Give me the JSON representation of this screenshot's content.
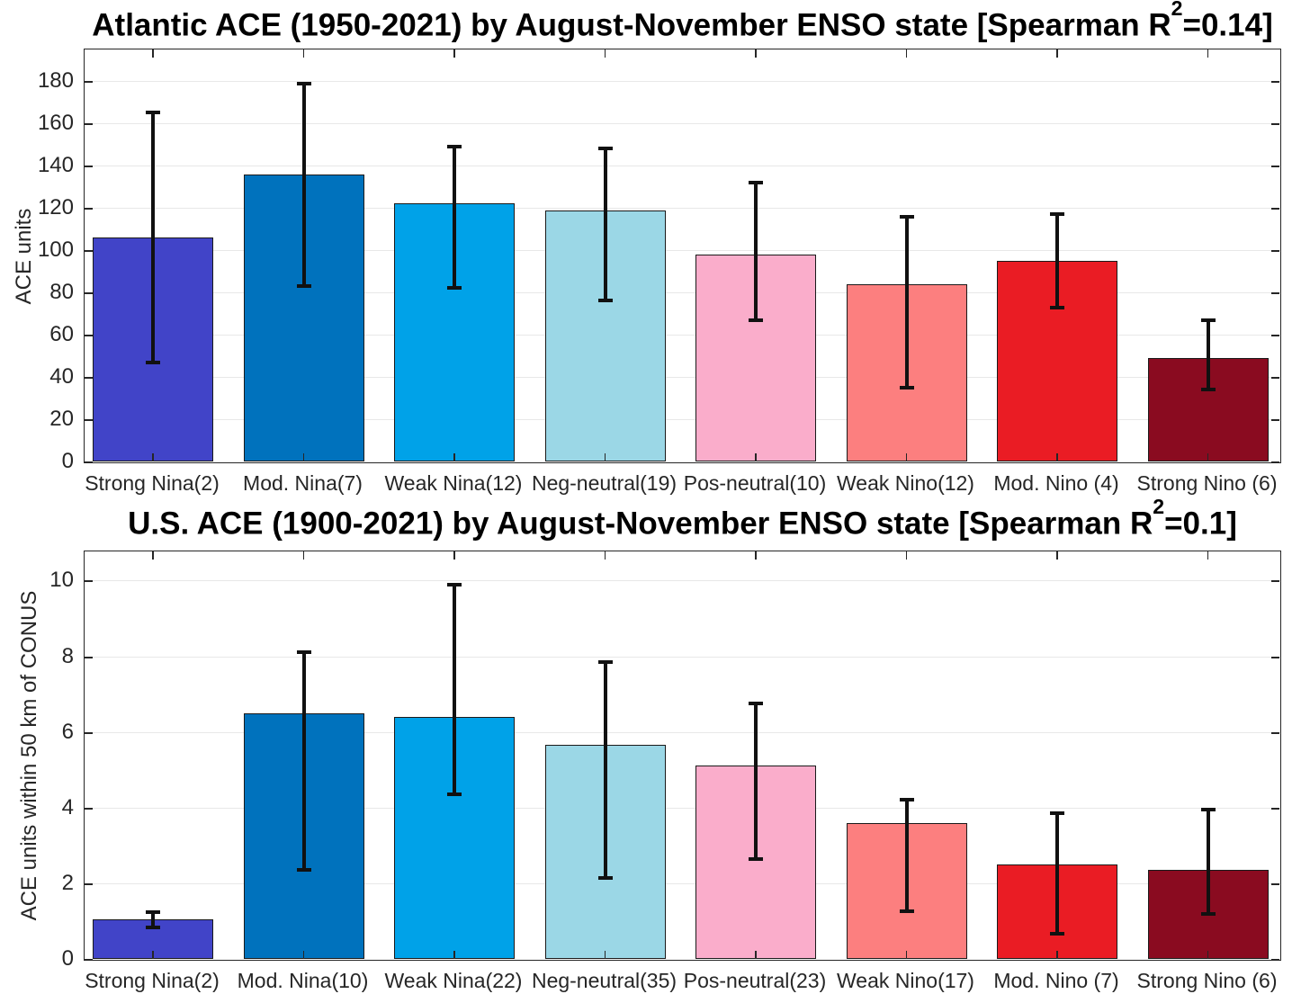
{
  "figure": {
    "background": "#FFFFFF"
  },
  "style": {
    "axis_color": "#262626",
    "grid_color": "#E8E8E8",
    "error_bar_color": "#111111",
    "bar_edge_color": "#1A1A1A",
    "title_color": "#000000"
  },
  "chart_data": [
    {
      "type": "bar",
      "title": {
        "prefix": "Atlantic ACE (1950-2021) by August-November ENSO state [Spearman R",
        "sup": "2",
        "suffix": "=0.14]"
      },
      "ylabel": "ACE units",
      "xlabel": "",
      "ylim": [
        0,
        195
      ],
      "yticks": [
        0,
        20,
        40,
        60,
        80,
        100,
        120,
        140,
        160,
        180
      ],
      "grid": true,
      "categories": [
        "Strong Nina(2)",
        "Mod. Nina(7)",
        "Weak Nina(12)",
        "Neg-neutral(19)",
        "Pos-neutral(10)",
        "Weak Nino(12)",
        "Mod. Nino (4)",
        "Strong Nino (6)"
      ],
      "values": [
        106,
        136,
        122,
        119,
        98,
        84,
        95,
        49
      ],
      "error_low": [
        47,
        83,
        82,
        76,
        67,
        35,
        73,
        34
      ],
      "error_high": [
        165,
        179,
        149,
        148,
        132,
        116,
        117,
        67
      ],
      "bar_colors": [
        "#4144C8",
        "#0072BD",
        "#00A2E8",
        "#9BD7E6",
        "#FAADCB",
        "#FC7F7F",
        "#EA1C24",
        "#8A0B20"
      ]
    },
    {
      "type": "bar",
      "title": {
        "prefix": "U.S. ACE (1900-2021) by August-November ENSO state [Spearman R",
        "sup": "2",
        "suffix": "=0.1]"
      },
      "ylabel": "ACE units within 50 km of CONUS",
      "xlabel": "",
      "ylim": [
        0,
        10.77
      ],
      "yticks": [
        0,
        2,
        4,
        6,
        8,
        10
      ],
      "grid": true,
      "categories": [
        "Strong Nina(2)",
        "Mod. Nina(10)",
        "Weak Nina(22)",
        "Neg-neutral(35)",
        "Pos-neutral(23)",
        "Weak Nino(17)",
        "Mod. Nino (7)",
        "Strong Nino (6)"
      ],
      "values": [
        1.05,
        6.5,
        6.4,
        5.65,
        5.1,
        3.6,
        2.5,
        2.35
      ],
      "error_low": [
        0.84,
        2.35,
        4.35,
        2.15,
        2.65,
        1.25,
        0.66,
        1.18
      ],
      "error_high": [
        1.24,
        8.1,
        9.9,
        7.85,
        6.75,
        4.2,
        3.85,
        3.95
      ],
      "bar_colors": [
        "#4144C8",
        "#0072BD",
        "#00A2E8",
        "#9BD7E6",
        "#FAADCB",
        "#FC7F7F",
        "#EA1C24",
        "#8A0B20"
      ]
    }
  ]
}
